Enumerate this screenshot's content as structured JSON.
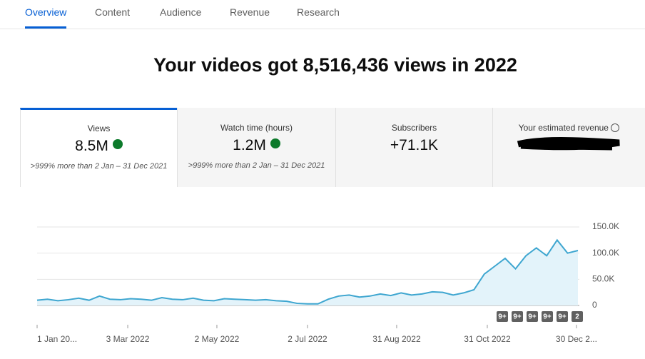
{
  "tabs": [
    "Overview",
    "Content",
    "Audience",
    "Revenue",
    "Research"
  ],
  "headline": "Your videos got 8,516,436 views in 2022",
  "metrics": [
    {
      "label": "Views",
      "value": "8.5M",
      "note": ">999% more than 2 Jan – 31 Dec 2021"
    },
    {
      "label": "Watch time (hours)",
      "value": "1.2M",
      "note": ">999% more than 2 Jan – 31 Dec 2021"
    },
    {
      "label": "Subscribers",
      "value": "+71.1K"
    },
    {
      "label": "Your estimated revenue"
    }
  ],
  "chart_data": {
    "type": "line",
    "color": "#3ea6d0",
    "area": true,
    "grid": true,
    "x": [
      "2022-01-01",
      "2022-01-08",
      "2022-01-15",
      "2022-01-22",
      "2022-01-29",
      "2022-02-05",
      "2022-02-12",
      "2022-02-19",
      "2022-02-26",
      "2022-03-05",
      "2022-03-12",
      "2022-03-19",
      "2022-03-26",
      "2022-04-02",
      "2022-04-09",
      "2022-04-16",
      "2022-04-23",
      "2022-04-30",
      "2022-05-07",
      "2022-05-14",
      "2022-05-21",
      "2022-05-28",
      "2022-06-04",
      "2022-06-11",
      "2022-06-18",
      "2022-06-25",
      "2022-07-02",
      "2022-07-09",
      "2022-07-16",
      "2022-07-23",
      "2022-07-30",
      "2022-08-06",
      "2022-08-13",
      "2022-08-20",
      "2022-08-27",
      "2022-09-03",
      "2022-09-10",
      "2022-09-17",
      "2022-09-24",
      "2022-10-01",
      "2022-10-08",
      "2022-10-15",
      "2022-10-22",
      "2022-10-29",
      "2022-11-05",
      "2022-11-12",
      "2022-11-19",
      "2022-11-26",
      "2022-12-03",
      "2022-12-10",
      "2022-12-17",
      "2022-12-24",
      "2022-12-31"
    ],
    "values": [
      10000,
      12000,
      9000,
      11000,
      14000,
      10000,
      18000,
      12000,
      11000,
      13000,
      12000,
      10000,
      15000,
      12000,
      11000,
      14000,
      10000,
      9000,
      13000,
      12000,
      11000,
      10000,
      11000,
      9000,
      8000,
      4000,
      3000,
      3000,
      12000,
      18000,
      20000,
      16000,
      18000,
      22000,
      19000,
      24000,
      20000,
      22000,
      26000,
      25000,
      20000,
      24000,
      30000,
      60000,
      75000,
      90000,
      70000,
      95000,
      110000,
      95000,
      125000,
      100000,
      105000
    ],
    "xlim": [
      "2022-01-01",
      "2022-12-31"
    ],
    "xticks": [
      {
        "value": "2022-01-01",
        "label": "1 Jan 20..."
      },
      {
        "value": "2022-03-03",
        "label": "3 Mar 2022"
      },
      {
        "value": "2022-05-02",
        "label": "2 May 2022"
      },
      {
        "value": "2022-07-02",
        "label": "2 Jul 2022"
      },
      {
        "value": "2022-08-31",
        "label": "31 Aug 2022"
      },
      {
        "value": "2022-10-31",
        "label": "31 Oct 2022"
      },
      {
        "value": "2022-12-30",
        "label": "30 Dec 2..."
      }
    ],
    "ylim": [
      0,
      150000
    ],
    "yticks": [
      {
        "value": 0,
        "label": "0"
      },
      {
        "value": 50000,
        "label": "50.0K"
      },
      {
        "value": 100000,
        "label": "100.0K"
      },
      {
        "value": 150000,
        "label": "150.0K"
      }
    ],
    "annotations": [
      "9+",
      "9+",
      "9+",
      "9+",
      "9+",
      "2"
    ]
  }
}
